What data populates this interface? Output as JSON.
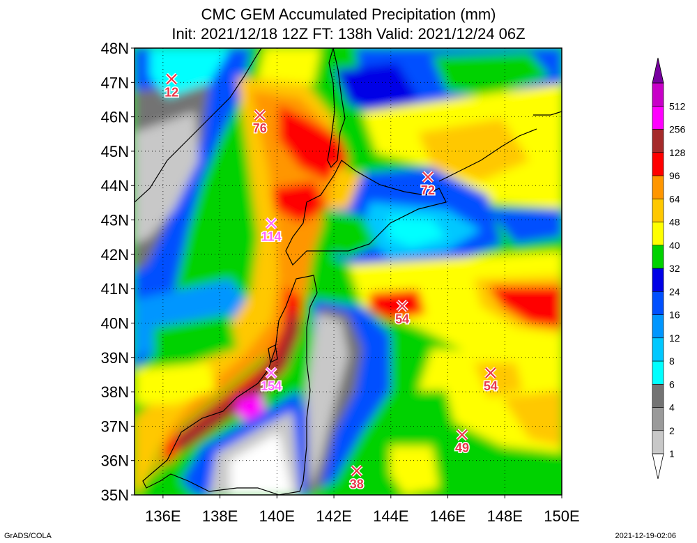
{
  "title": "CMC GEM Accumulated Precipitation (mm)",
  "subtitle": "Init: 2021/12/18 12Z  FT: 138h  Valid: 2021/12/24 06Z",
  "credit": "GrADS/COLA",
  "timestamp": "2021-12-19-02:06",
  "x_ticks": [
    {
      "value": 136,
      "label": "136E"
    },
    {
      "value": 138,
      "label": "138E"
    },
    {
      "value": 140,
      "label": "140E"
    },
    {
      "value": 142,
      "label": "142E"
    },
    {
      "value": 144,
      "label": "144E"
    },
    {
      "value": 146,
      "label": "146E"
    },
    {
      "value": 148,
      "label": "148E"
    },
    {
      "value": 150,
      "label": "150E"
    }
  ],
  "y_ticks": [
    {
      "value": 35,
      "label": "35N"
    },
    {
      "value": 36,
      "label": "36N"
    },
    {
      "value": 37,
      "label": "37N"
    },
    {
      "value": 38,
      "label": "38N"
    },
    {
      "value": 39,
      "label": "39N"
    },
    {
      "value": 40,
      "label": "40N"
    },
    {
      "value": 41,
      "label": "41N"
    },
    {
      "value": 42,
      "label": "42N"
    },
    {
      "value": 43,
      "label": "43N"
    },
    {
      "value": 44,
      "label": "44N"
    },
    {
      "value": 45,
      "label": "45N"
    },
    {
      "value": 46,
      "label": "46N"
    },
    {
      "value": 47,
      "label": "47N"
    },
    {
      "value": 48,
      "label": "48N"
    }
  ],
  "colorbar": {
    "levels": [
      {
        "label": "1",
        "color": "#c8c8c8"
      },
      {
        "label": "2",
        "color": "#9a9a9a"
      },
      {
        "label": "4",
        "color": "#737373"
      },
      {
        "label": "6",
        "color": "#00ffff"
      },
      {
        "label": "8",
        "color": "#00c8ff"
      },
      {
        "label": "12",
        "color": "#0096ff"
      },
      {
        "label": "16",
        "color": "#0050ff"
      },
      {
        "label": "24",
        "color": "#0000e6"
      },
      {
        "label": "32",
        "color": "#00d200"
      },
      {
        "label": "40",
        "color": "#ffff00"
      },
      {
        "label": "48",
        "color": "#ffc800"
      },
      {
        "label": "64",
        "color": "#ff9600"
      },
      {
        "label": "96",
        "color": "#ff0000"
      },
      {
        "label": "128",
        "color": "#a52a2a"
      },
      {
        "label": "256",
        "color": "#ff00ff"
      },
      {
        "label": "512",
        "color": "#c800c8"
      }
    ],
    "below_color": "#ffffff",
    "above_color": "#7800a0"
  },
  "markers": [
    {
      "lon": 136.3,
      "lat": 47.1,
      "label": "12",
      "color": "#e8384a"
    },
    {
      "lon": 139.4,
      "lat": 46.05,
      "label": "76",
      "color": "#e8384a"
    },
    {
      "lon": 145.3,
      "lat": 44.25,
      "label": "72",
      "color": "#e8384a"
    },
    {
      "lon": 139.8,
      "lat": 42.9,
      "label": "114",
      "color": "#ff66ff"
    },
    {
      "lon": 144.4,
      "lat": 40.5,
      "label": "54",
      "color": "#e8384a"
    },
    {
      "lon": 139.8,
      "lat": 38.55,
      "label": "154",
      "color": "#ff66ff"
    },
    {
      "lon": 147.5,
      "lat": 38.55,
      "label": "54",
      "color": "#e8384a"
    },
    {
      "lon": 146.5,
      "lat": 36.75,
      "label": "49",
      "color": "#e8384a"
    },
    {
      "lon": 142.8,
      "lat": 35.7,
      "label": "38",
      "color": "#e8384a"
    }
  ],
  "map_extent": {
    "lon_min": 135,
    "lon_max": 150,
    "lat_min": 35,
    "lat_max": 48
  }
}
